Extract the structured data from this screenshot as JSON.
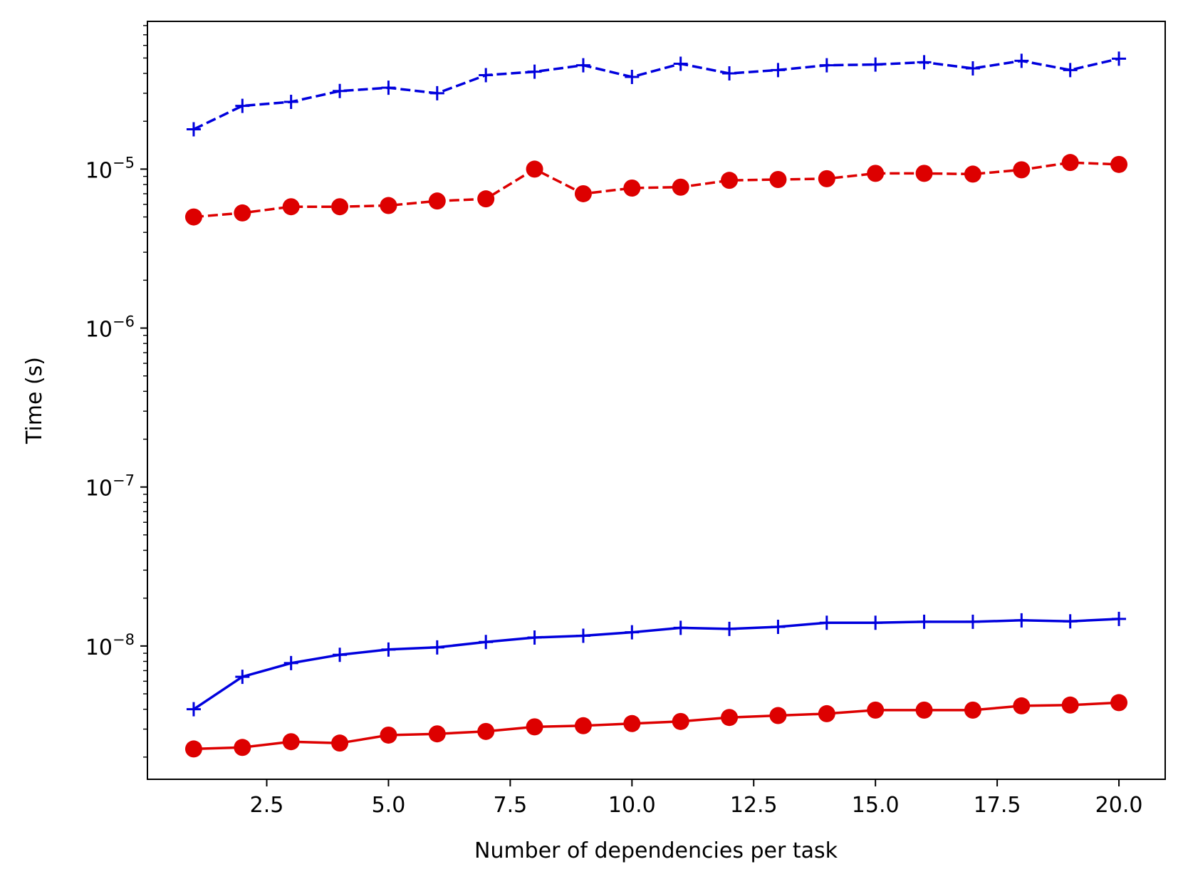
{
  "chart_data": {
    "type": "line",
    "title": "",
    "xlabel": "Number of dependencies per task",
    "ylabel": "Time (s)",
    "xscale": "linear",
    "yscale": "log",
    "xlim": [
      0.05,
      20.95
    ],
    "ylim": [
      1.45e-09,
      8.5e-05
    ],
    "grid": false,
    "legend": "none",
    "x_ticks": [
      2.5,
      5.0,
      7.5,
      10.0,
      12.5,
      15.0,
      17.5,
      20.0
    ],
    "x_tick_labels": [
      "2.5",
      "5.0",
      "7.5",
      "10.0",
      "12.5",
      "15.0",
      "17.5",
      "20.0"
    ],
    "y_ticks": [
      {
        "value": 1e-08,
        "base": "10",
        "exp": "−8"
      },
      {
        "value": 1e-07,
        "base": "10",
        "exp": "−7"
      },
      {
        "value": 1e-06,
        "base": "10",
        "exp": "−6"
      },
      {
        "value": 1e-05,
        "base": "10",
        "exp": "−5"
      }
    ],
    "x": [
      1,
      2,
      3,
      4,
      5,
      6,
      7,
      8,
      9,
      10,
      11,
      12,
      13,
      14,
      15,
      16,
      17,
      18,
      19,
      20
    ],
    "series": [
      {
        "color": "#0000dd",
        "line": "dashed",
        "marker": "plus",
        "values": [
          1.78e-05,
          2.5e-05,
          2.65e-05,
          3.1e-05,
          3.25e-05,
          3e-05,
          3.9e-05,
          4.1e-05,
          4.5e-05,
          3.8e-05,
          4.6e-05,
          4e-05,
          4.2e-05,
          4.5e-05,
          4.55e-05,
          4.7e-05,
          4.3e-05,
          4.8e-05,
          4.2e-05,
          4.95e-05
        ]
      },
      {
        "color": "#dd0000",
        "line": "dashed",
        "marker": "circle",
        "values": [
          5e-06,
          5.3e-06,
          5.8e-06,
          5.8e-06,
          5.9e-06,
          6.3e-06,
          6.5e-06,
          1e-05,
          7e-06,
          7.6e-06,
          7.7e-06,
          8.5e-06,
          8.6e-06,
          8.7e-06,
          9.4e-06,
          9.4e-06,
          9.3e-06,
          9.9e-06,
          1.1e-05,
          1.07e-05
        ]
      },
      {
        "color": "#0000dd",
        "line": "solid",
        "marker": "plus",
        "values": [
          4e-09,
          6.4e-09,
          7.8e-09,
          8.8e-09,
          9.5e-09,
          9.8e-09,
          1.06e-08,
          1.13e-08,
          1.16e-08,
          1.22e-08,
          1.3e-08,
          1.28e-08,
          1.32e-08,
          1.4e-08,
          1.4e-08,
          1.42e-08,
          1.42e-08,
          1.45e-08,
          1.43e-08,
          1.48e-08
        ]
      },
      {
        "color": "#dd0000",
        "line": "solid",
        "marker": "circle",
        "values": [
          2.25e-09,
          2.3e-09,
          2.5e-09,
          2.45e-09,
          2.75e-09,
          2.8e-09,
          2.9e-09,
          3.1e-09,
          3.15e-09,
          3.25e-09,
          3.35e-09,
          3.55e-09,
          3.65e-09,
          3.75e-09,
          3.95e-09,
          3.95e-09,
          3.95e-09,
          4.2e-09,
          4.25e-09,
          4.4e-09
        ]
      }
    ]
  }
}
